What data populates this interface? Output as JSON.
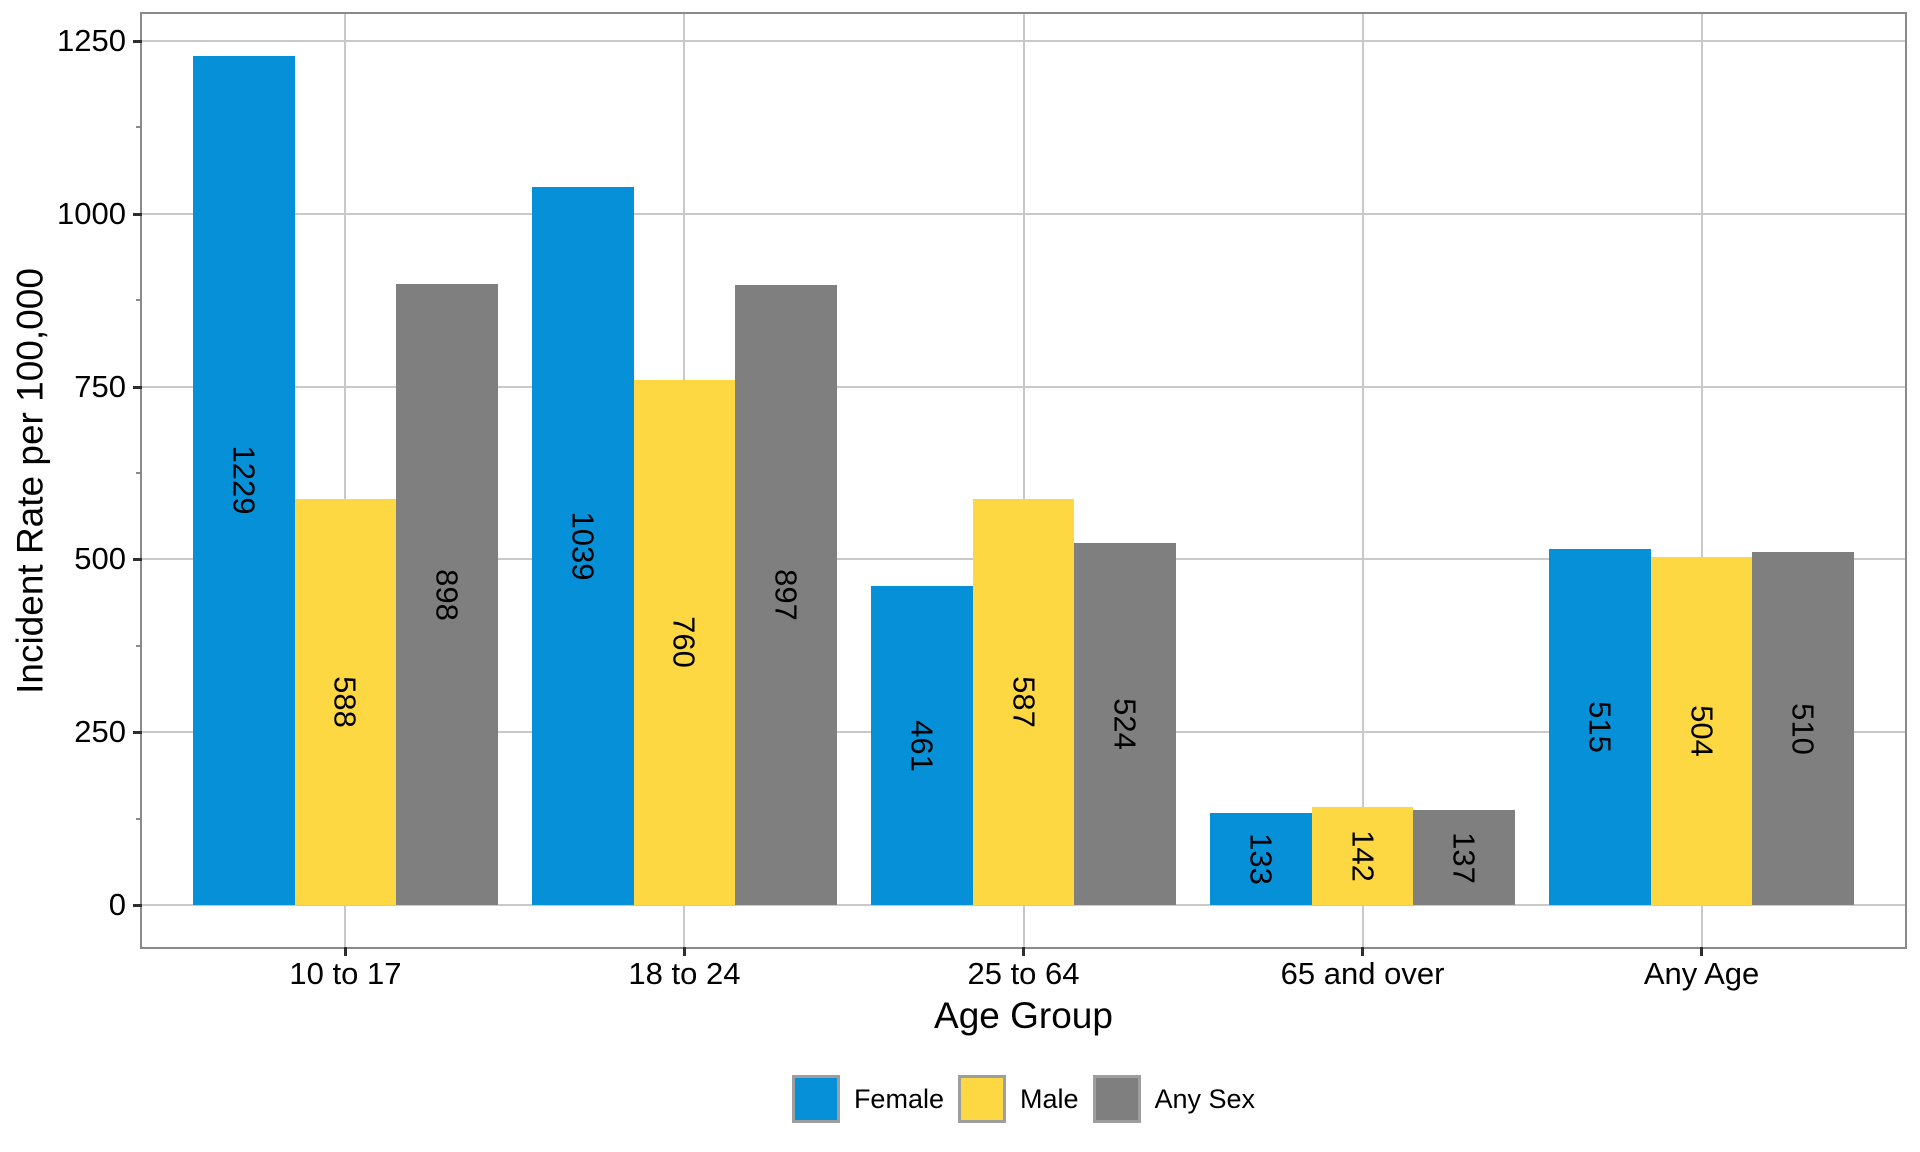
{
  "chart_data": {
    "type": "bar",
    "title": "",
    "categories": [
      "10 to 17",
      "18 to 24",
      "25 to 64",
      "65 and over",
      "Any Age"
    ],
    "series": [
      {
        "name": "Female",
        "color": "#0690d8",
        "values": [
          1229,
          1039,
          461,
          133,
          515
        ]
      },
      {
        "name": "Male",
        "color": "#fed843",
        "values": [
          588,
          760,
          587,
          142,
          504
        ]
      },
      {
        "name": "Any Sex",
        "color": "#7f7f7f",
        "values": [
          898,
          897,
          524,
          137,
          510
        ]
      }
    ],
    "xlabel": "Age Group",
    "ylabel": "Incident Rate per 100,000",
    "ylim": [
      0,
      1250
    ],
    "yticks": [
      0,
      250,
      500,
      750,
      1000,
      1250
    ],
    "ytick_labels": [
      "0",
      "250",
      "500",
      "750",
      "1000",
      "1250"
    ],
    "y_minor_ticks": [
      125,
      375,
      625,
      875,
      1125
    ],
    "grid": "major horizontal at yticks, major vertical at category centers",
    "bar_value_labels_rotation_deg": 90,
    "legend_position": "bottom",
    "legend_labels": [
      "Female",
      "Male",
      "Any Sex"
    ]
  },
  "style": {
    "grid_color": "#c9c9c9",
    "panel_border_color": "#8a8a8a",
    "major_tick_color": "#2e2e2e",
    "minor_tick_color": "#8a8a8a",
    "text_color": "#000000",
    "background": "#ffffff"
  }
}
